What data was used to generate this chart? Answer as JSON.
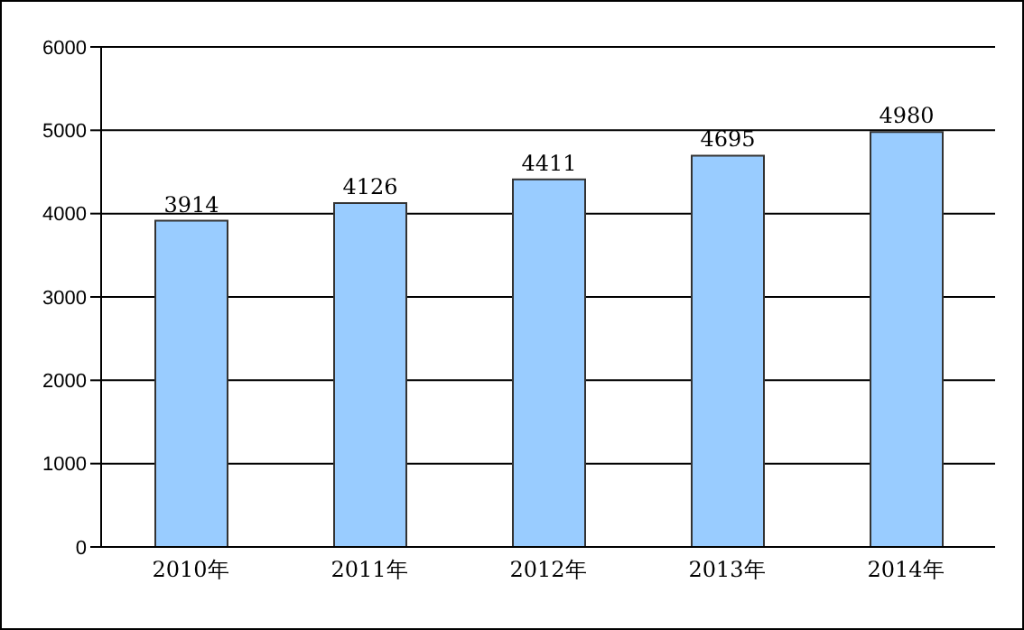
{
  "chart_data": {
    "type": "bar",
    "categories": [
      "2010年",
      "2011年",
      "2012年",
      "2013年",
      "2014年"
    ],
    "values": [
      3914,
      4126,
      4411,
      4695,
      4980
    ],
    "color": "#99ccff",
    "ylim": [
      0,
      6000
    ],
    "yticks": [
      0,
      1000,
      2000,
      3000,
      4000,
      5000,
      6000
    ],
    "grid": "y",
    "data_labels": true
  }
}
